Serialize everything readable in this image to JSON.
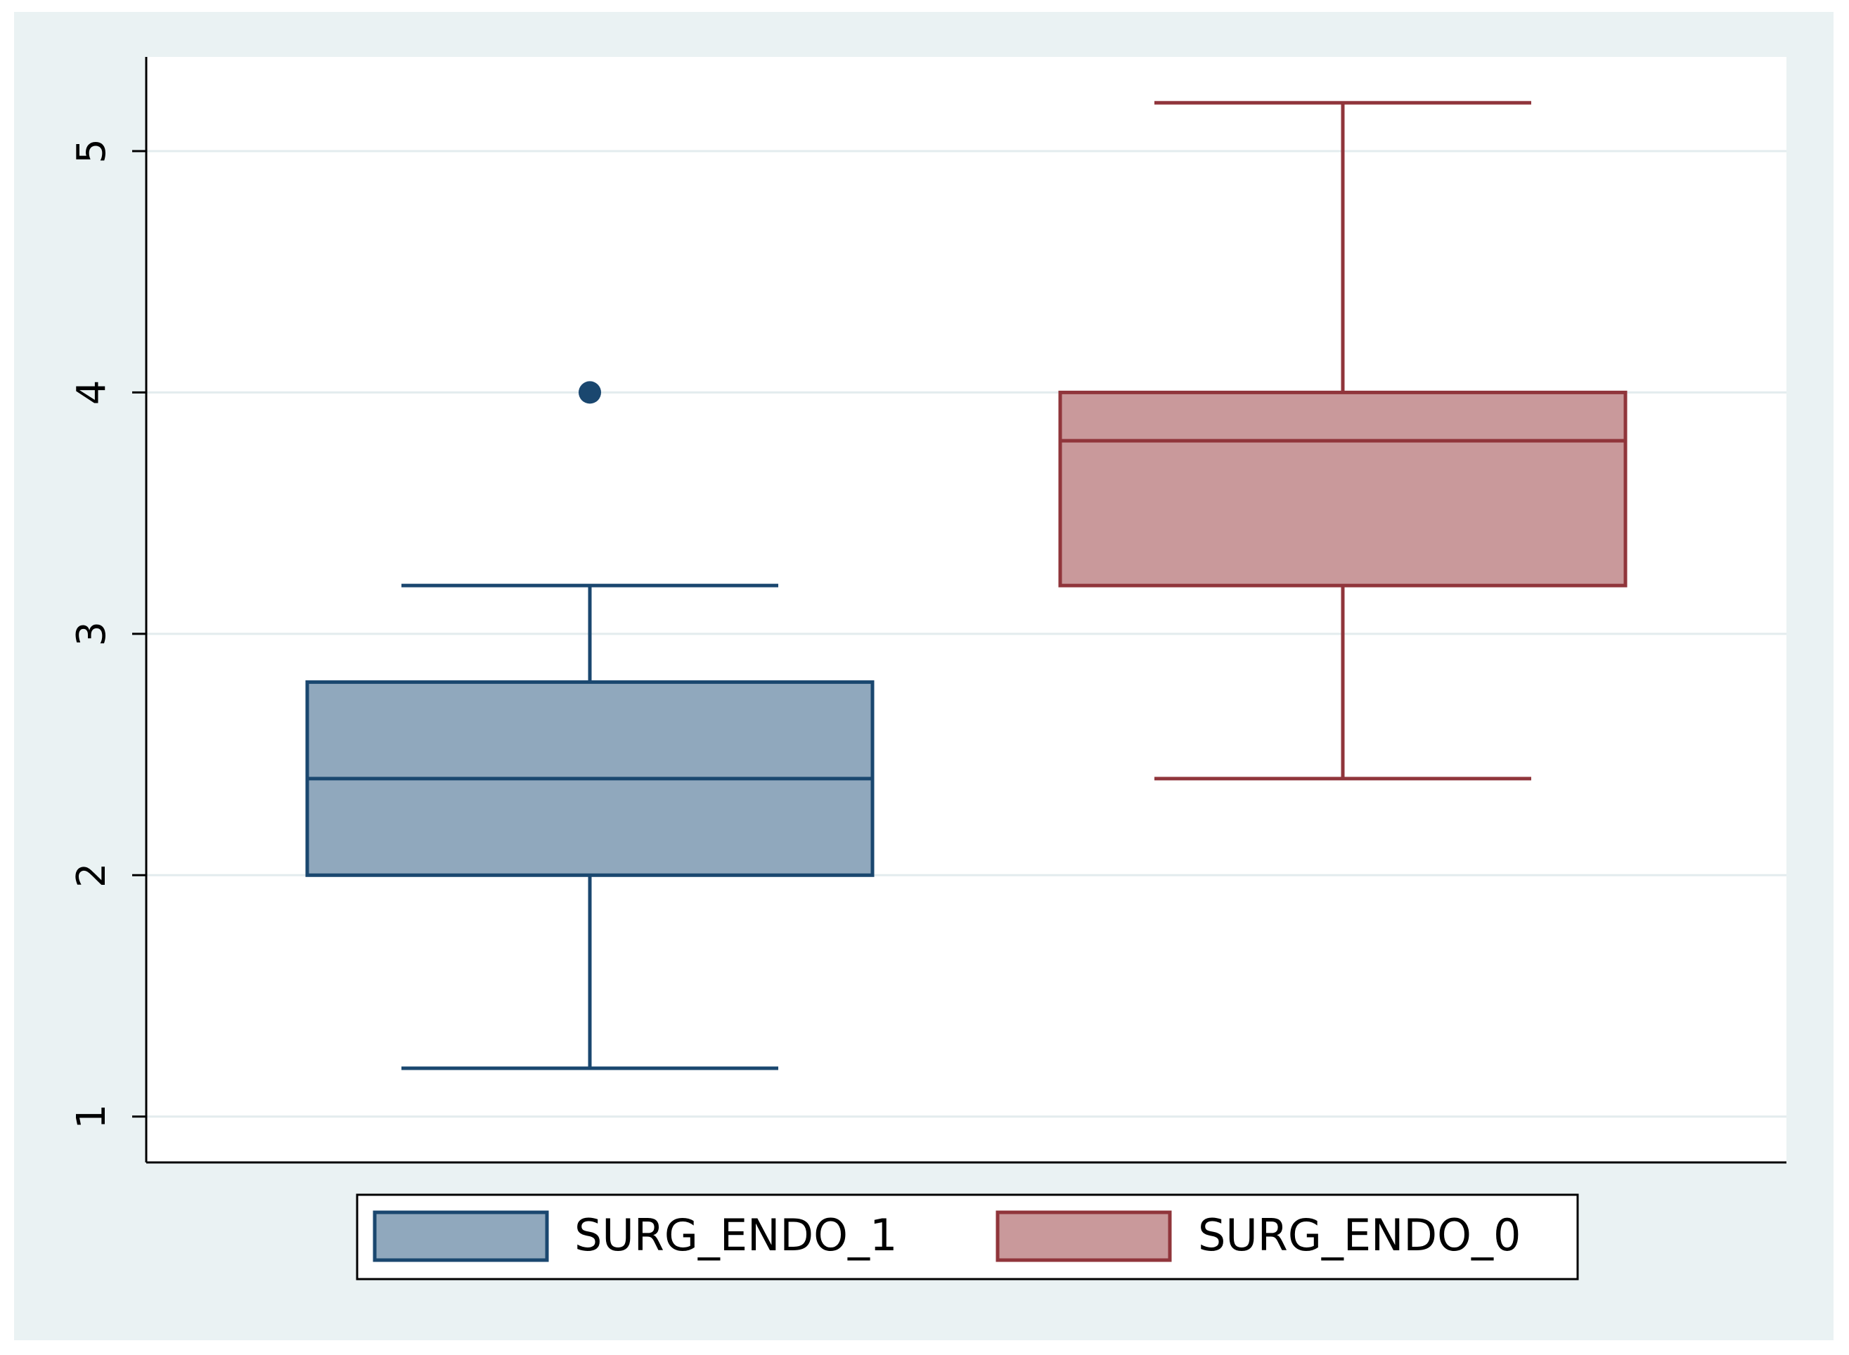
{
  "chart_data": {
    "type": "box",
    "ylim": [
      0.81,
      5.39
    ],
    "yticks": [
      1,
      2,
      3,
      4,
      5
    ],
    "grid": true,
    "series": [
      {
        "name": "SURG_ENDO_1",
        "color": "#1a476f",
        "fill": "#90a8bd",
        "whisker_low": 1.2,
        "q1": 2.0,
        "median": 2.4,
        "q3": 2.8,
        "whisker_high": 3.2,
        "outliers": [
          4
        ]
      },
      {
        "name": "SURG_ENDO_0",
        "color": "#90353b",
        "fill": "#c9999b",
        "whisker_low": 2.4,
        "q1": 3.2,
        "median": 3.8,
        "q3": 4.0,
        "whisker_high": 5.2,
        "outliers": []
      }
    ]
  }
}
